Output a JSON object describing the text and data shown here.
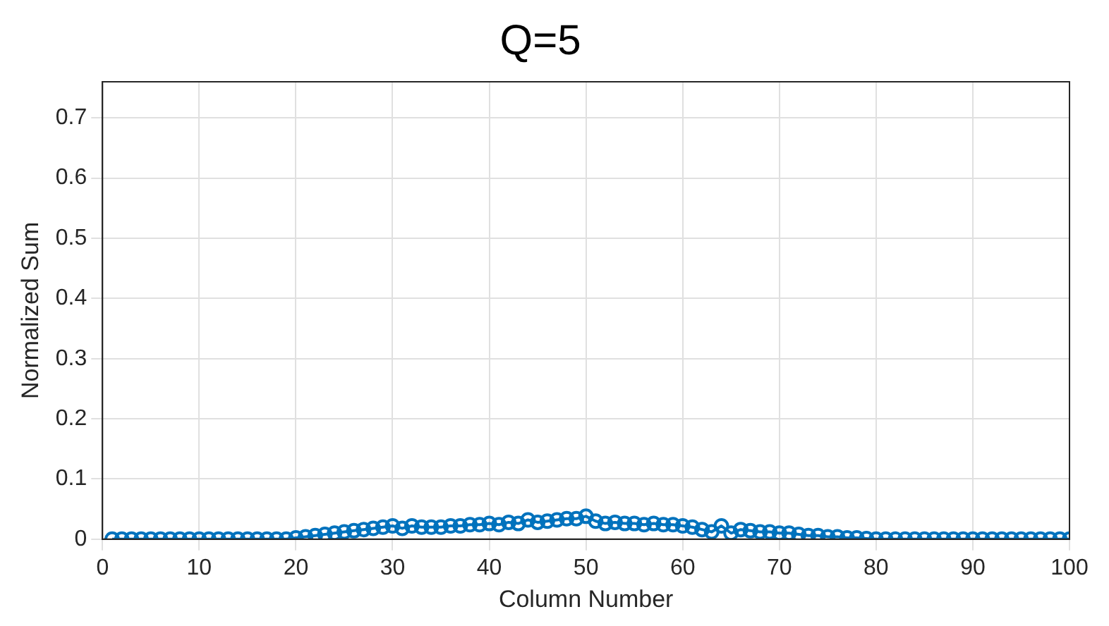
{
  "chart_data": {
    "type": "line",
    "title": "Q=5",
    "xlabel": "Column Number",
    "ylabel": "Normalized Sum",
    "x": [
      1,
      2,
      3,
      4,
      5,
      6,
      7,
      8,
      9,
      10,
      11,
      12,
      13,
      14,
      15,
      16,
      17,
      18,
      19,
      20,
      21,
      22,
      23,
      24,
      25,
      26,
      27,
      28,
      29,
      30,
      31,
      32,
      33,
      34,
      35,
      36,
      37,
      38,
      39,
      40,
      41,
      42,
      43,
      44,
      45,
      46,
      47,
      48,
      49,
      50,
      51,
      52,
      53,
      54,
      55,
      56,
      57,
      58,
      59,
      60,
      61,
      62,
      63,
      64,
      65,
      66,
      67,
      68,
      69,
      70,
      71,
      72,
      73,
      74,
      75,
      76,
      77,
      78,
      79,
      80,
      81,
      82,
      83,
      84,
      85,
      86,
      87,
      88,
      89,
      90,
      91,
      92,
      93,
      94,
      95,
      96,
      97,
      98,
      99,
      100
    ],
    "series": [
      {
        "color": "#0072bd",
        "values": [
          0,
          0,
          0,
          0,
          0,
          0,
          0,
          0,
          0,
          0,
          0,
          0,
          0,
          0,
          0,
          0,
          0,
          0,
          0,
          0.002,
          0.004,
          0.006,
          0.008,
          0.01,
          0.012,
          0.014,
          0.016,
          0.018,
          0.02,
          0.022,
          0.018,
          0.022,
          0.02,
          0.02,
          0.02,
          0.022,
          0.022,
          0.024,
          0.024,
          0.026,
          0.024,
          0.028,
          0.026,
          0.032,
          0.028,
          0.03,
          0.032,
          0.034,
          0.034,
          0.038,
          0.03,
          0.026,
          0.028,
          0.026,
          0.026,
          0.024,
          0.026,
          0.024,
          0.024,
          0.022,
          0.02,
          0.016,
          0.012,
          0.022,
          0.01,
          0.016,
          0.014,
          0.012,
          0.012,
          0.01,
          0.01,
          0.008,
          0.006,
          0.006,
          0.004,
          0.004,
          0.002,
          0.002,
          0.001,
          0,
          0,
          0,
          0,
          0,
          0,
          0,
          0,
          0,
          0,
          0,
          0,
          0,
          0,
          0,
          0,
          0,
          0,
          0,
          0,
          0
        ]
      }
    ],
    "xlim": [
      0,
      100
    ],
    "xticks": [
      0,
      10,
      20,
      30,
      40,
      50,
      60,
      70,
      80,
      90,
      100
    ],
    "ylim": [
      0,
      0.76
    ],
    "yticks": [
      0,
      0.1,
      0.2,
      0.3,
      0.4,
      0.5,
      0.6,
      0.7
    ],
    "grid": true,
    "legend": false,
    "marker": "circle",
    "line_style": "solid"
  }
}
